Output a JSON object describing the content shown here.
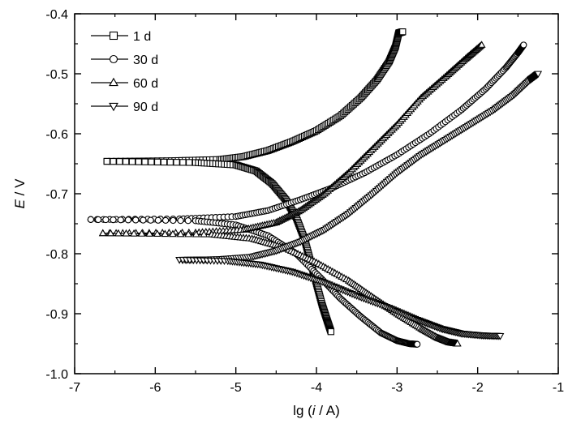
{
  "chart_data": {
    "type": "line",
    "title": "",
    "xlabel_parts": [
      "lg (",
      "i",
      " / A)"
    ],
    "ylabel_parts": [
      "E",
      " / V"
    ],
    "xlim": [
      -7,
      -1
    ],
    "ylim": [
      -1.0,
      -0.4
    ],
    "xticks": [
      -7,
      -6,
      -5,
      -4,
      -3,
      -2,
      -1
    ],
    "xtick_labels": [
      "-7",
      "-6",
      "-5",
      "-4",
      "-3",
      "-2",
      "-1"
    ],
    "yticks": [
      -1.0,
      -0.9,
      -0.8,
      -0.7,
      -0.6,
      -0.5,
      -0.4
    ],
    "ytick_labels": [
      "-1.0",
      "-0.9",
      "-0.8",
      "-0.7",
      "-0.6",
      "-0.5",
      "-0.4"
    ],
    "grid": false,
    "legend_position": "top-left",
    "series": [
      {
        "name": "1 d",
        "marker": "square",
        "anodic": [
          [
            -6.6,
            -0.646
          ],
          [
            -5.8,
            -0.645
          ],
          [
            -5.2,
            -0.643
          ],
          [
            -4.9,
            -0.638
          ],
          [
            -4.6,
            -0.628
          ],
          [
            -4.3,
            -0.613
          ],
          [
            -4.0,
            -0.595
          ],
          [
            -3.7,
            -0.57
          ],
          [
            -3.45,
            -0.54
          ],
          [
            -3.25,
            -0.51
          ],
          [
            -3.1,
            -0.48
          ],
          [
            -3.02,
            -0.455
          ],
          [
            -2.98,
            -0.432
          ],
          [
            -2.93,
            -0.43
          ]
        ],
        "cathodic": [
          [
            -6.6,
            -0.646
          ],
          [
            -5.5,
            -0.648
          ],
          [
            -5.0,
            -0.652
          ],
          [
            -4.75,
            -0.662
          ],
          [
            -4.55,
            -0.683
          ],
          [
            -4.38,
            -0.71
          ],
          [
            -4.25,
            -0.74
          ],
          [
            -4.15,
            -0.775
          ],
          [
            -4.08,
            -0.81
          ],
          [
            -4.0,
            -0.85
          ],
          [
            -3.93,
            -0.885
          ],
          [
            -3.87,
            -0.91
          ],
          [
            -3.82,
            -0.93
          ]
        ]
      },
      {
        "name": "30 d",
        "marker": "circle",
        "anodic": [
          [
            -6.8,
            -0.743
          ],
          [
            -5.7,
            -0.742
          ],
          [
            -5.0,
            -0.738
          ],
          [
            -4.6,
            -0.728
          ],
          [
            -4.2,
            -0.71
          ],
          [
            -3.8,
            -0.69
          ],
          [
            -3.4,
            -0.665
          ],
          [
            -3.0,
            -0.635
          ],
          [
            -2.6,
            -0.6
          ],
          [
            -2.2,
            -0.56
          ],
          [
            -1.9,
            -0.525
          ],
          [
            -1.65,
            -0.49
          ],
          [
            -1.5,
            -0.465
          ],
          [
            -1.43,
            -0.452
          ]
        ],
        "cathodic": [
          [
            -6.8,
            -0.743
          ],
          [
            -5.5,
            -0.745
          ],
          [
            -5.0,
            -0.752
          ],
          [
            -4.6,
            -0.77
          ],
          [
            -4.25,
            -0.8
          ],
          [
            -3.95,
            -0.84
          ],
          [
            -3.7,
            -0.875
          ],
          [
            -3.45,
            -0.905
          ],
          [
            -3.2,
            -0.932
          ],
          [
            -3.0,
            -0.945
          ],
          [
            -2.85,
            -0.95
          ],
          [
            -2.75,
            -0.951
          ]
        ]
      },
      {
        "name": "60 d",
        "marker": "triangle-up",
        "anodic": [
          [
            -6.65,
            -0.766
          ],
          [
            -5.5,
            -0.765
          ],
          [
            -4.9,
            -0.76
          ],
          [
            -4.5,
            -0.748
          ],
          [
            -4.2,
            -0.728
          ],
          [
            -3.9,
            -0.7
          ],
          [
            -3.6,
            -0.665
          ],
          [
            -3.3,
            -0.625
          ],
          [
            -3.0,
            -0.585
          ],
          [
            -2.7,
            -0.54
          ],
          [
            -2.4,
            -0.505
          ],
          [
            -2.15,
            -0.475
          ],
          [
            -1.95,
            -0.452
          ]
        ],
        "cathodic": [
          [
            -6.65,
            -0.766
          ],
          [
            -5.3,
            -0.768
          ],
          [
            -4.8,
            -0.775
          ],
          [
            -4.4,
            -0.79
          ],
          [
            -4.0,
            -0.815
          ],
          [
            -3.6,
            -0.845
          ],
          [
            -3.3,
            -0.873
          ],
          [
            -3.0,
            -0.9
          ],
          [
            -2.7,
            -0.925
          ],
          [
            -2.5,
            -0.94
          ],
          [
            -2.35,
            -0.948
          ],
          [
            -2.25,
            -0.95
          ]
        ]
      },
      {
        "name": "90 d",
        "marker": "triangle-down",
        "anodic": [
          [
            -5.7,
            -0.81
          ],
          [
            -5.2,
            -0.809
          ],
          [
            -4.8,
            -0.805
          ],
          [
            -4.5,
            -0.795
          ],
          [
            -4.2,
            -0.78
          ],
          [
            -3.9,
            -0.76
          ],
          [
            -3.6,
            -0.733
          ],
          [
            -3.3,
            -0.7
          ],
          [
            -3.0,
            -0.665
          ],
          [
            -2.7,
            -0.635
          ],
          [
            -2.4,
            -0.61
          ],
          [
            -2.1,
            -0.585
          ],
          [
            -1.8,
            -0.56
          ],
          [
            -1.55,
            -0.535
          ],
          [
            -1.35,
            -0.51
          ],
          [
            -1.25,
            -0.5
          ]
        ],
        "cathodic": [
          [
            -5.7,
            -0.81
          ],
          [
            -5.1,
            -0.812
          ],
          [
            -4.7,
            -0.818
          ],
          [
            -4.3,
            -0.83
          ],
          [
            -3.9,
            -0.848
          ],
          [
            -3.5,
            -0.87
          ],
          [
            -3.1,
            -0.89
          ],
          [
            -2.75,
            -0.91
          ],
          [
            -2.45,
            -0.925
          ],
          [
            -2.2,
            -0.933
          ],
          [
            -1.95,
            -0.936
          ],
          [
            -1.72,
            -0.937
          ]
        ]
      }
    ]
  }
}
